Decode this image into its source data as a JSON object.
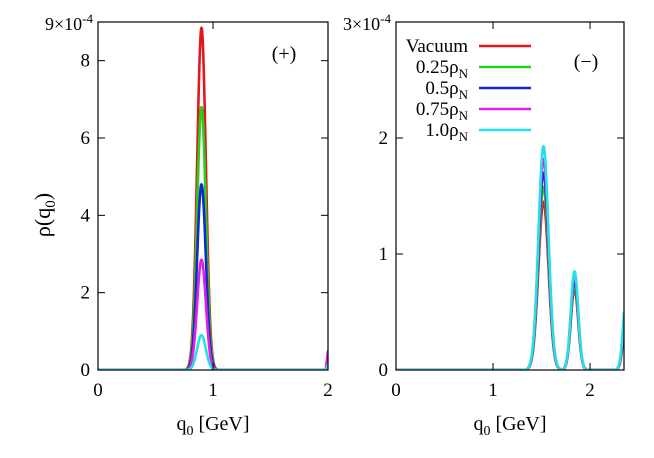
{
  "figure": {
    "ylabel": "ρ(q",
    "ylabel_sub": "0",
    "ylabel_close": ")"
  },
  "chart_data": [
    {
      "type": "line",
      "panel": "left",
      "annotation": "(+)",
      "xlabel": "q",
      "xlabel_sub": "0",
      "xlabel_unit": " [GeV]",
      "xlim": [
        0,
        2
      ],
      "ylim": [
        0,
        9
      ],
      "y_multiplier": "9×10",
      "y_multiplier_exp": "-4",
      "xticks": [
        "0",
        "1",
        "2"
      ],
      "yticks": [
        "0",
        "2",
        "4",
        "6",
        "8"
      ],
      "series": [
        {
          "name": "Vacuum",
          "color": "#e8141c",
          "peaks": [
            {
              "center": 0.9,
              "height": 8.85,
              "width": 0.038
            }
          ],
          "edge_rise": 0.0
        },
        {
          "name": "0.25ρN",
          "color": "#22d21c",
          "peaks": [
            {
              "center": 0.9,
              "height": 6.8,
              "width": 0.038
            }
          ],
          "edge_rise": 0.35
        },
        {
          "name": "0.5ρN",
          "color": "#1428d0",
          "peaks": [
            {
              "center": 0.9,
              "height": 4.8,
              "width": 0.038
            }
          ],
          "edge_rise": 0.25
        },
        {
          "name": "0.75ρN",
          "color": "#e020e0",
          "peaks": [
            {
              "center": 0.9,
              "height": 2.85,
              "width": 0.038
            }
          ],
          "edge_rise": 0.5
        },
        {
          "name": "1.0ρN",
          "color": "#26e0e8",
          "peaks": [
            {
              "center": 0.9,
              "height": 0.9,
              "width": 0.038
            }
          ],
          "edge_rise": 0.15
        }
      ]
    },
    {
      "type": "line",
      "panel": "right",
      "annotation": "(−)",
      "xlabel": "q",
      "xlabel_sub": "0",
      "xlabel_unit": " [GeV]",
      "xlim": [
        0,
        2.35
      ],
      "ylim": [
        0,
        3
      ],
      "y_multiplier": "3×10",
      "y_multiplier_exp": "-4",
      "xticks": [
        "0",
        "1",
        "2"
      ],
      "yticks": [
        "0",
        "1",
        "2"
      ],
      "series": [
        {
          "name": "Vacuum",
          "color": "#e8141c",
          "peaks": [
            {
              "center": 1.52,
              "height": 1.45,
              "width": 0.052
            },
            {
              "center": 1.84,
              "height": 0.7,
              "width": 0.038
            },
            {
              "center": 2.38,
              "height": 0.5,
              "width": 0.035
            }
          ]
        },
        {
          "name": "0.25ρN",
          "color": "#22d21c",
          "peaks": [
            {
              "center": 1.52,
              "height": 1.58,
              "width": 0.052
            },
            {
              "center": 1.84,
              "height": 0.74,
              "width": 0.038
            },
            {
              "center": 2.38,
              "height": 0.55,
              "width": 0.035
            }
          ]
        },
        {
          "name": "0.5ρN",
          "color": "#1428d0",
          "peaks": [
            {
              "center": 1.52,
              "height": 1.7,
              "width": 0.052
            },
            {
              "center": 1.84,
              "height": 0.78,
              "width": 0.038
            },
            {
              "center": 2.38,
              "height": 0.6,
              "width": 0.035
            }
          ]
        },
        {
          "name": "0.75ρN",
          "color": "#e020e0",
          "peaks": [
            {
              "center": 1.52,
              "height": 1.82,
              "width": 0.052
            },
            {
              "center": 1.84,
              "height": 0.82,
              "width": 0.038
            },
            {
              "center": 2.38,
              "height": 0.66,
              "width": 0.035
            }
          ]
        },
        {
          "name": "1.0ρN",
          "color": "#26e0e8",
          "peaks": [
            {
              "center": 1.52,
              "height": 1.93,
              "width": 0.052
            },
            {
              "center": 1.84,
              "height": 0.85,
              "width": 0.038
            },
            {
              "center": 2.38,
              "height": 0.72,
              "width": 0.035
            }
          ]
        }
      ],
      "legend": {
        "placement": "top-left",
        "entries": [
          {
            "label": "Vacuum",
            "sub": "",
            "color": "#e8141c"
          },
          {
            "label": "0.25ρ",
            "sub": "N",
            "color": "#22d21c"
          },
          {
            "label": "0.5ρ",
            "sub": "N",
            "color": "#1428d0"
          },
          {
            "label": "0.75ρ",
            "sub": "N",
            "color": "#e020e0"
          },
          {
            "label": "1.0ρ",
            "sub": "N",
            "color": "#26e0e8"
          }
        ]
      }
    }
  ]
}
